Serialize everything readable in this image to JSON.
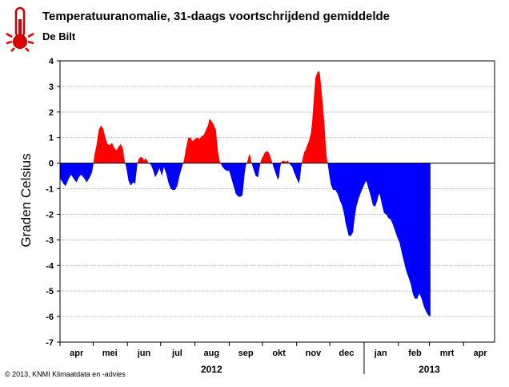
{
  "header": {
    "title": "Temperatuuranomalie, 31-daags voortschrijdend gemiddelde",
    "subtitle": "De Bilt",
    "icon": "thermometer-icon"
  },
  "footer": {
    "credit": "© 2013, KNMI Klimaatdata en -advies"
  },
  "colors": {
    "positive": "#ff0000",
    "negative": "#0000ff",
    "grid": "#b0b0b0",
    "axis": "#000000"
  },
  "chart_data": {
    "type": "area",
    "title": "Temperatuuranomalie, 31-daags voortschrijdend gemiddelde",
    "subtitle": "De Bilt",
    "ylabel": "Graden Celsius",
    "xlabel": "",
    "ylim": [
      -7,
      4
    ],
    "yticks": [
      4,
      3,
      2,
      1,
      0,
      -1,
      -2,
      -3,
      -4,
      -5,
      -6,
      -7
    ],
    "grid": true,
    "x_range_days": [
      0,
      393
    ],
    "month_labels": [
      {
        "label": "apr",
        "day": 15
      },
      {
        "label": "mei",
        "day": 45
      },
      {
        "label": "jun",
        "day": 76
      },
      {
        "label": "jul",
        "day": 106
      },
      {
        "label": "aug",
        "day": 137
      },
      {
        "label": "sep",
        "day": 168
      },
      {
        "label": "okt",
        "day": 198
      },
      {
        "label": "nov",
        "day": 229
      },
      {
        "label": "dec",
        "day": 259
      },
      {
        "label": "jan",
        "day": 290
      },
      {
        "label": "feb",
        "day": 321
      },
      {
        "label": "mrt",
        "day": 350
      },
      {
        "label": "apr",
        "day": 380
      }
    ],
    "month_boundaries": [
      0,
      30,
      61,
      91,
      122,
      153,
      183,
      214,
      244,
      275,
      306,
      334,
      365
    ],
    "year_labels": [
      {
        "label": "2012",
        "day": 137
      },
      {
        "label": "2013",
        "day": 334
      }
    ],
    "series": [
      {
        "values": [
          [
            0,
            -0.6
          ],
          [
            3,
            -0.8
          ],
          [
            5,
            -0.9
          ],
          [
            8,
            -0.6
          ],
          [
            10,
            -0.45
          ],
          [
            13,
            -0.65
          ],
          [
            15,
            -0.75
          ],
          [
            17,
            -0.55
          ],
          [
            19,
            -0.45
          ],
          [
            22,
            -0.6
          ],
          [
            24,
            -0.75
          ],
          [
            27,
            -0.55
          ],
          [
            29,
            -0.35
          ],
          [
            30,
            -0.1
          ],
          [
            31,
            0.3
          ],
          [
            33,
            0.7
          ],
          [
            35,
            1.3
          ],
          [
            37,
            1.47
          ],
          [
            39,
            1.35
          ],
          [
            41,
            1.0
          ],
          [
            43,
            0.75
          ],
          [
            45,
            0.7
          ],
          [
            47,
            0.8
          ],
          [
            49,
            0.6
          ],
          [
            51,
            0.5
          ],
          [
            53,
            0.65
          ],
          [
            55,
            0.75
          ],
          [
            57,
            0.55
          ],
          [
            58,
            0.2
          ],
          [
            59,
            0.0
          ],
          [
            60,
            -0.2
          ],
          [
            62,
            -0.7
          ],
          [
            64,
            -0.88
          ],
          [
            66,
            -0.75
          ],
          [
            68,
            -0.8
          ],
          [
            69,
            -0.4
          ],
          [
            70,
            0.0
          ],
          [
            71,
            0.15
          ],
          [
            73,
            0.25
          ],
          [
            75,
            0.2
          ],
          [
            76,
            0.1
          ],
          [
            77,
            0.2
          ],
          [
            79,
            0.1
          ],
          [
            80,
            0.0
          ],
          [
            82,
            -0.05
          ],
          [
            84,
            -0.25
          ],
          [
            86,
            -0.55
          ],
          [
            88,
            -0.4
          ],
          [
            90,
            -0.2
          ],
          [
            92,
            -0.5
          ],
          [
            94,
            -0.15
          ],
          [
            96,
            -0.4
          ],
          [
            98,
            -0.75
          ],
          [
            100,
            -1.0
          ],
          [
            102,
            -1.05
          ],
          [
            104,
            -1.05
          ],
          [
            106,
            -0.9
          ],
          [
            108,
            -0.5
          ],
          [
            110,
            -0.2
          ],
          [
            112,
            0.1
          ],
          [
            114,
            0.6
          ],
          [
            116,
            1.0
          ],
          [
            118,
            1.0
          ],
          [
            120,
            0.85
          ],
          [
            122,
            0.95
          ],
          [
            124,
            1.0
          ],
          [
            126,
            0.95
          ],
          [
            128,
            1.05
          ],
          [
            130,
            1.1
          ],
          [
            132,
            1.3
          ],
          [
            134,
            1.5
          ],
          [
            135,
            1.73
          ],
          [
            137,
            1.65
          ],
          [
            139,
            1.5
          ],
          [
            141,
            1.3
          ],
          [
            142,
            0.8
          ],
          [
            143,
            0.4
          ],
          [
            144,
            0.15
          ],
          [
            145,
            0.0
          ],
          [
            147,
            -0.15
          ],
          [
            149,
            -0.25
          ],
          [
            151,
            -0.3
          ],
          [
            153,
            -0.3
          ],
          [
            155,
            -0.6
          ],
          [
            157,
            -0.9
          ],
          [
            159,
            -1.2
          ],
          [
            161,
            -1.3
          ],
          [
            163,
            -1.32
          ],
          [
            165,
            -1.25
          ],
          [
            166,
            -0.85
          ],
          [
            167,
            -0.4
          ],
          [
            168,
            -0.1
          ],
          [
            169,
            0.0
          ],
          [
            170,
            0.15
          ],
          [
            171,
            0.35
          ],
          [
            172,
            0.3
          ],
          [
            173,
            0.05
          ],
          [
            174,
            -0.1
          ],
          [
            175,
            -0.25
          ],
          [
            177,
            -0.5
          ],
          [
            179,
            -0.55
          ],
          [
            180,
            -0.3
          ],
          [
            181,
            -0.05
          ],
          [
            182,
            0.15
          ],
          [
            184,
            0.3
          ],
          [
            185,
            0.4
          ],
          [
            187,
            0.48
          ],
          [
            189,
            0.4
          ],
          [
            191,
            0.15
          ],
          [
            193,
            -0.15
          ],
          [
            195,
            -0.4
          ],
          [
            197,
            -0.65
          ],
          [
            198,
            -0.55
          ],
          [
            199,
            -0.2
          ],
          [
            200,
            0.05
          ],
          [
            202,
            0.1
          ],
          [
            204,
            0.05
          ],
          [
            206,
            0.1
          ],
          [
            208,
            -0.05
          ],
          [
            210,
            -0.15
          ],
          [
            212,
            -0.4
          ],
          [
            214,
            -0.6
          ],
          [
            216,
            -0.8
          ],
          [
            217,
            -0.6
          ],
          [
            218,
            -0.2
          ],
          [
            219,
            0.1
          ],
          [
            220,
            0.3
          ],
          [
            221,
            0.45
          ],
          [
            222,
            0.5
          ],
          [
            223,
            0.65
          ],
          [
            225,
            0.85
          ],
          [
            227,
            1.2
          ],
          [
            228,
            1.6
          ],
          [
            229,
            2.2
          ],
          [
            230,
            2.8
          ],
          [
            231,
            3.35
          ],
          [
            233,
            3.57
          ],
          [
            234,
            3.6
          ],
          [
            235,
            3.5
          ],
          [
            237,
            2.6
          ],
          [
            239,
            1.6
          ],
          [
            240,
            0.9
          ],
          [
            241,
            0.3
          ],
          [
            242,
            0.0
          ],
          [
            243,
            -0.3
          ],
          [
            244,
            -0.6
          ],
          [
            245,
            -0.85
          ],
          [
            247,
            -1.05
          ],
          [
            249,
            -1.05
          ],
          [
            251,
            -1.2
          ],
          [
            253,
            -1.45
          ],
          [
            255,
            -1.65
          ],
          [
            257,
            -2.0
          ],
          [
            258,
            -2.3
          ],
          [
            260,
            -2.65
          ],
          [
            261,
            -2.83
          ],
          [
            263,
            -2.85
          ],
          [
            265,
            -2.7
          ],
          [
            266,
            -2.3
          ],
          [
            267,
            -2.0
          ],
          [
            268,
            -1.7
          ],
          [
            270,
            -1.4
          ],
          [
            272,
            -1.15
          ],
          [
            274,
            -0.95
          ],
          [
            276,
            -0.75
          ],
          [
            277,
            -0.7
          ],
          [
            279,
            -1.0
          ],
          [
            281,
            -1.3
          ],
          [
            283,
            -1.65
          ],
          [
            285,
            -1.7
          ],
          [
            287,
            -1.45
          ],
          [
            288,
            -1.25
          ],
          [
            289,
            -1.2
          ],
          [
            291,
            -1.6
          ],
          [
            293,
            -1.95
          ],
          [
            295,
            -2.0
          ],
          [
            297,
            -2.15
          ],
          [
            299,
            -2.2
          ],
          [
            301,
            -2.4
          ],
          [
            303,
            -2.65
          ],
          [
            305,
            -2.9
          ],
          [
            307,
            -3.1
          ],
          [
            309,
            -3.5
          ],
          [
            311,
            -3.85
          ],
          [
            313,
            -4.2
          ],
          [
            315,
            -4.45
          ],
          [
            317,
            -4.7
          ],
          [
            319,
            -5.1
          ],
          [
            321,
            -5.3
          ],
          [
            323,
            -5.3
          ],
          [
            325,
            -5.1
          ],
          [
            327,
            -5.3
          ],
          [
            329,
            -5.6
          ],
          [
            331,
            -5.8
          ],
          [
            333,
            -5.95
          ],
          [
            335,
            -6.0
          ]
        ]
      }
    ]
  }
}
